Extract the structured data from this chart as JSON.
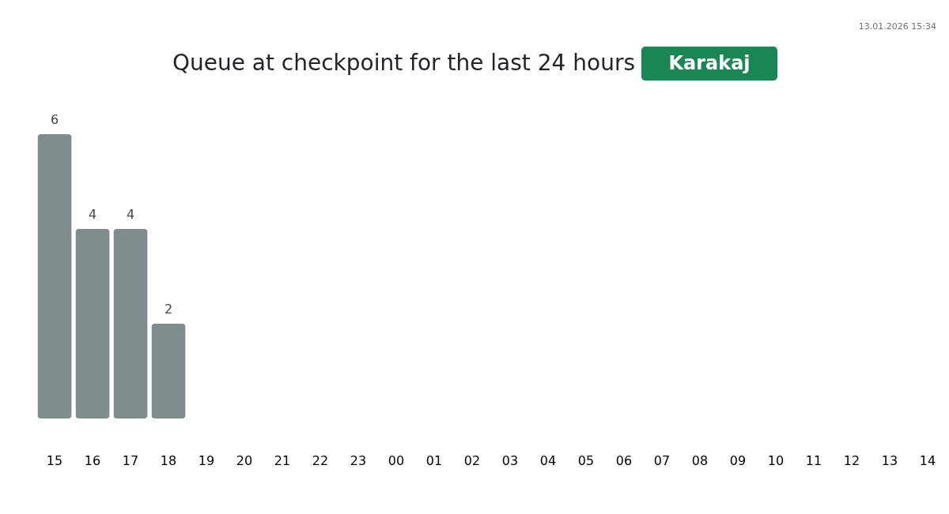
{
  "chart_data": {
    "type": "bar",
    "title": "Queue at checkpoint for the last 24 hours",
    "subtitle": "Karakaj",
    "categories": [
      "15",
      "16",
      "17",
      "18",
      "19",
      "20",
      "21",
      "22",
      "23",
      "00",
      "01",
      "02",
      "03",
      "04",
      "05",
      "06",
      "07",
      "08",
      "09",
      "10",
      "11",
      "12",
      "13",
      "14"
    ],
    "values": [
      6,
      4,
      4,
      2,
      null,
      null,
      null,
      null,
      null,
      null,
      null,
      null,
      null,
      null,
      null,
      null,
      null,
      null,
      null,
      null,
      null,
      null,
      null,
      null
    ],
    "color": "#7f8c8d",
    "data_labels": true,
    "annotations": [
      "13.01.2026 15:34"
    ]
  }
}
